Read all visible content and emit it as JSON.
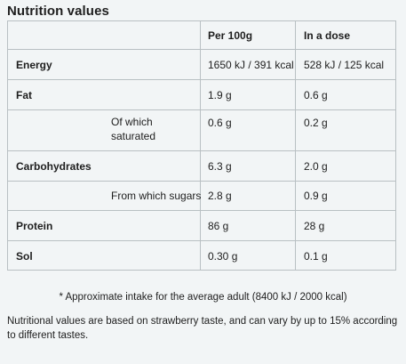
{
  "title": "Nutrition values",
  "columns": {
    "per100": "Per 100g",
    "dose": "In a dose"
  },
  "rows": [
    {
      "label": "Energy",
      "sub": "",
      "per100": "1650 kJ / 391 kcal",
      "dose": "528 kJ / 125 kcal"
    },
    {
      "label": "Fat",
      "sub": "",
      "per100": "1.9 g",
      "dose": "0.6 g"
    },
    {
      "label": "",
      "sub": "Of which saturated",
      "per100": "0.6 g",
      "dose": "0.2 g"
    },
    {
      "label": "Carbohydrates",
      "sub": "",
      "per100": "6.3 g",
      "dose": "2.0 g"
    },
    {
      "label": "",
      "sub": "From which sugars",
      "per100": "2.8 g",
      "dose": "0.9 g"
    },
    {
      "label": "Protein",
      "sub": "",
      "per100": "86 g",
      "dose": "28 g"
    },
    {
      "label": "Sol",
      "sub": "",
      "per100": "0.30 g",
      "dose": "0.1 g"
    }
  ],
  "footnote": "* Approximate intake for the average adult (8400 kJ / 2000 kcal)",
  "note": "Nutritional values are based on strawberry taste, and can vary by up to 15% according to different tastes."
}
